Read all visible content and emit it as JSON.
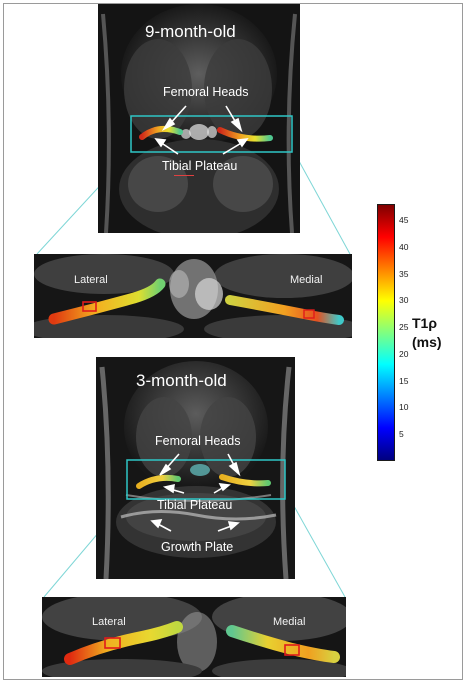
{
  "panels": [
    {
      "title": "9-month-old",
      "femoral_label": "Femoral Heads",
      "tibial_label": "Tibial Plateau"
    },
    {
      "title": "3-month-old",
      "femoral_label": "Femoral Heads",
      "tibial_label": "Tibial Plateau",
      "growth_label": "Growth Plate"
    }
  ],
  "zooms": [
    {
      "left_label": "Lateral",
      "right_label": "Medial"
    },
    {
      "left_label": "Lateral",
      "right_label": "Medial"
    }
  ],
  "colorbar": {
    "label_line1": "T1ρ",
    "label_line2": "(ms)",
    "ticks": [
      "45",
      "40",
      "35",
      "30",
      "25",
      "20",
      "15",
      "10",
      "5"
    ],
    "range": [
      0,
      48
    ],
    "gradient_colors": [
      "#00007f",
      "#0000ff",
      "#0080ff",
      "#00ffff",
      "#80ff80",
      "#ffff00",
      "#ff8000",
      "#ff0000",
      "#7f0000"
    ]
  },
  "colors": {
    "frame_border": "#9a9a9a",
    "box": "#2fc6c6",
    "roi": "#e01b1b"
  }
}
